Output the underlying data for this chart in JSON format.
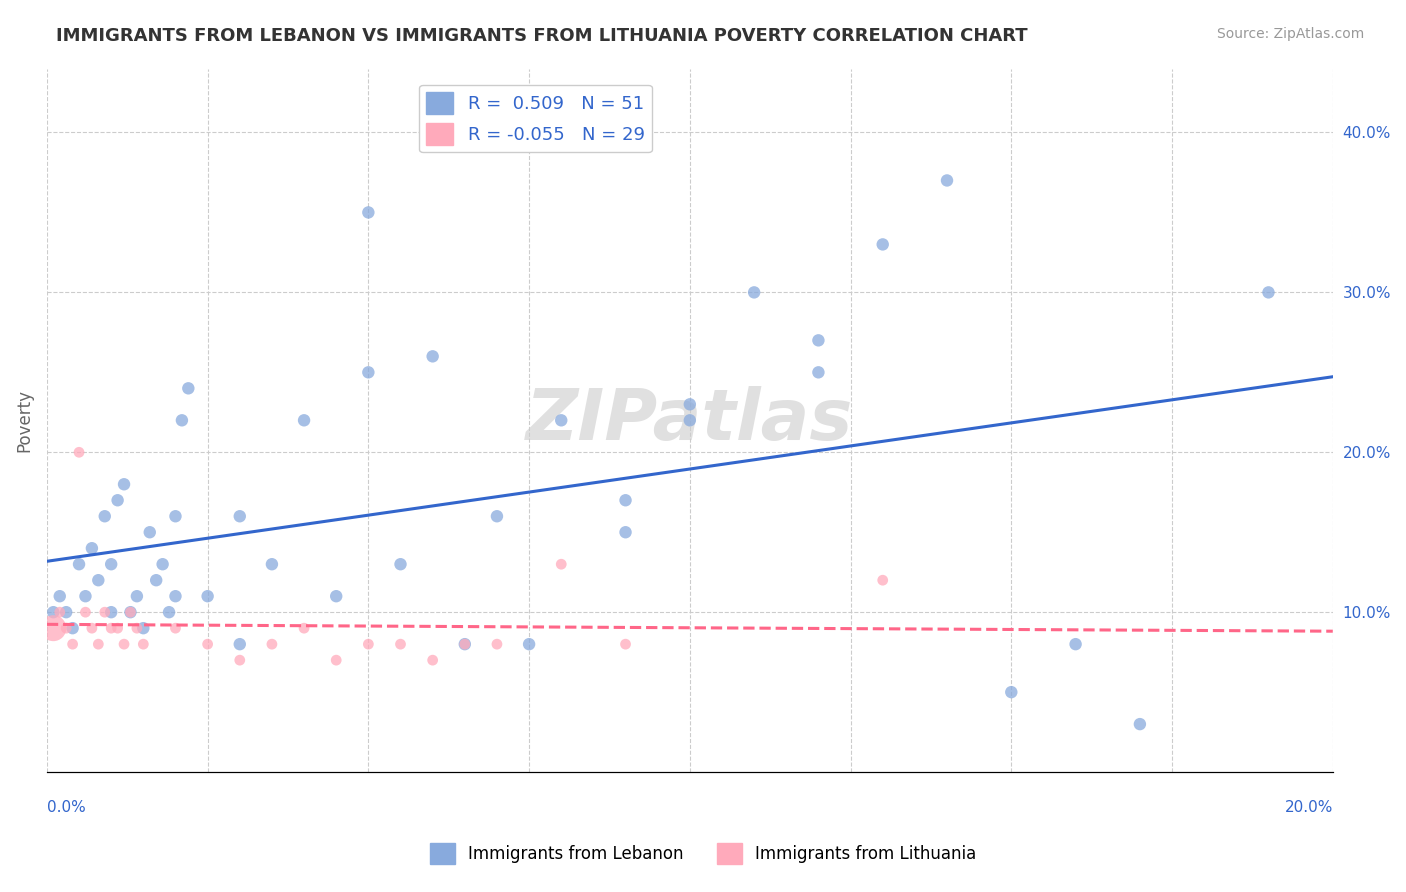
{
  "title": "IMMIGRANTS FROM LEBANON VS IMMIGRANTS FROM LITHUANIA POVERTY CORRELATION CHART",
  "source": "Source: ZipAtlas.com",
  "ylabel": "Poverty",
  "y_tick_labels": [
    "10.0%",
    "20.0%",
    "30.0%",
    "40.0%"
  ],
  "y_tick_values": [
    0.1,
    0.2,
    0.3,
    0.4
  ],
  "xlim": [
    0.0,
    0.2
  ],
  "ylim": [
    0.0,
    0.44
  ],
  "legend1_R": "0.509",
  "legend1_N": "51",
  "legend2_R": "-0.055",
  "legend2_N": "29",
  "blue_color": "#88AADD",
  "pink_color": "#FFAABB",
  "blue_line_color": "#3366CC",
  "pink_line_color": "#FF6688",
  "watermark": "ZIPatlas",
  "lebanon_x": [
    0.001,
    0.002,
    0.003,
    0.004,
    0.005,
    0.006,
    0.007,
    0.008,
    0.009,
    0.01,
    0.011,
    0.012,
    0.013,
    0.014,
    0.015,
    0.016,
    0.017,
    0.018,
    0.019,
    0.02,
    0.021,
    0.022,
    0.025,
    0.03,
    0.035,
    0.04,
    0.045,
    0.05,
    0.055,
    0.06,
    0.065,
    0.07,
    0.075,
    0.08,
    0.09,
    0.1,
    0.11,
    0.12,
    0.13,
    0.14,
    0.15,
    0.16,
    0.17,
    0.01,
    0.02,
    0.03,
    0.05,
    0.09,
    0.1,
    0.12,
    0.19
  ],
  "lebanon_y": [
    0.1,
    0.11,
    0.1,
    0.09,
    0.13,
    0.11,
    0.14,
    0.12,
    0.16,
    0.1,
    0.17,
    0.18,
    0.1,
    0.11,
    0.09,
    0.15,
    0.12,
    0.13,
    0.1,
    0.11,
    0.22,
    0.24,
    0.11,
    0.16,
    0.13,
    0.22,
    0.11,
    0.25,
    0.13,
    0.26,
    0.08,
    0.16,
    0.08,
    0.22,
    0.17,
    0.23,
    0.3,
    0.25,
    0.33,
    0.37,
    0.05,
    0.08,
    0.03,
    0.13,
    0.16,
    0.08,
    0.35,
    0.15,
    0.22,
    0.27,
    0.3
  ],
  "lithuania_x": [
    0.001,
    0.002,
    0.003,
    0.004,
    0.005,
    0.006,
    0.007,
    0.008,
    0.009,
    0.01,
    0.011,
    0.012,
    0.013,
    0.014,
    0.015,
    0.02,
    0.025,
    0.03,
    0.035,
    0.04,
    0.045,
    0.05,
    0.055,
    0.06,
    0.065,
    0.07,
    0.08,
    0.09,
    0.13
  ],
  "lithuania_y": [
    0.09,
    0.1,
    0.09,
    0.08,
    0.2,
    0.1,
    0.09,
    0.08,
    0.1,
    0.09,
    0.09,
    0.08,
    0.1,
    0.09,
    0.08,
    0.09,
    0.08,
    0.07,
    0.08,
    0.09,
    0.07,
    0.08,
    0.08,
    0.07,
    0.08,
    0.08,
    0.13,
    0.08,
    0.12
  ],
  "x_grid_ticks": [
    0.0,
    0.025,
    0.05,
    0.075,
    0.1,
    0.125,
    0.15,
    0.175,
    0.2
  ]
}
